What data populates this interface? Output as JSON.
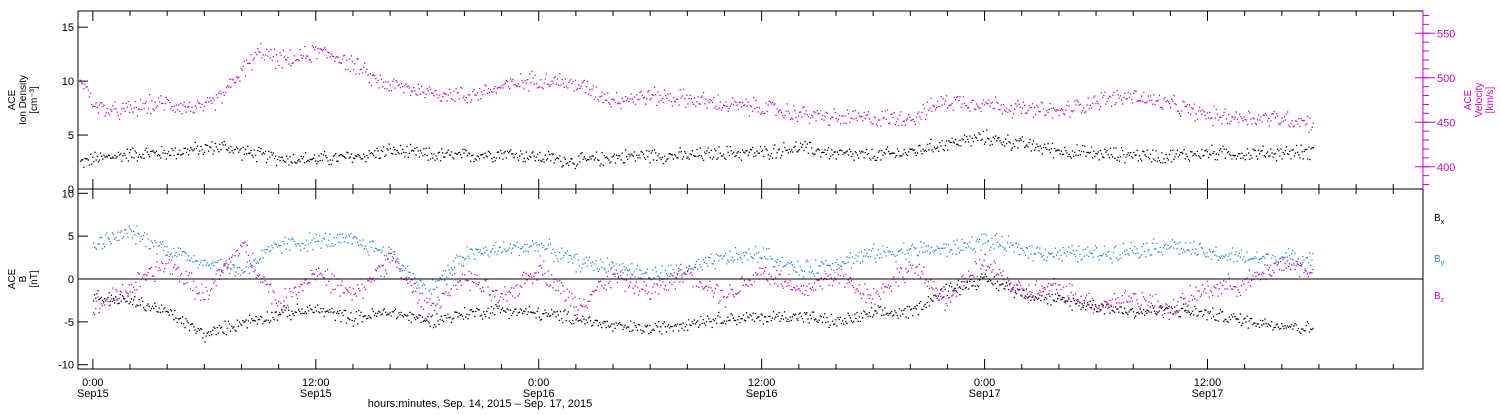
{
  "colors": {
    "axis": "#000000",
    "density": "#000000",
    "velocity": "#cc00cc",
    "bx": "#000000",
    "by": "#1e88e5",
    "bz": "#cc00cc"
  },
  "x_axis": {
    "title": "hours:minutes, Sep. 14, 2015 – Sep. 17, 2015",
    "ticks": [
      {
        "hours": 0,
        "time": "0:00",
        "date": "Sep15"
      },
      {
        "hours": 12,
        "time": "12:00",
        "date": "Sep15"
      },
      {
        "hours": 24,
        "time": "0:00",
        "date": "Sep16"
      },
      {
        "hours": 36,
        "time": "12:00",
        "date": "Sep16"
      },
      {
        "hours": 48,
        "time": "0:00",
        "date": "Sep17"
      },
      {
        "hours": 60,
        "time": "12:00",
        "date": "Sep17"
      }
    ]
  },
  "chart_data": [
    {
      "type": "scatter",
      "panel": "top",
      "xlabel": "hours:minutes, Sep. 14, 2015 – Sep. 17, 2015",
      "x_range_hours_from_sep15_0000": [
        -0.8,
        71.6
      ],
      "left_axis": {
        "label_lines": [
          "ACE",
          "Ion Density",
          "[cm⁻³]"
        ],
        "ylim": [
          0,
          16.5
        ],
        "ticks": [
          0,
          5,
          10,
          15
        ]
      },
      "right_axis": {
        "label_lines": [
          "ACE",
          "Velocity",
          "[km/s]"
        ],
        "ylim": [
          375,
          575
        ],
        "ticks": [
          400,
          450,
          500,
          550
        ]
      },
      "grid": false,
      "series": [
        {
          "axis": "left",
          "x": [
            -0.7,
            0,
            2,
            4,
            6,
            7,
            8,
            9,
            10,
            12,
            14,
            16,
            18,
            20,
            22,
            24,
            26,
            28,
            30,
            32,
            34,
            36,
            38,
            40,
            42,
            44,
            46,
            48,
            50,
            52,
            54,
            56,
            58,
            60,
            62,
            64,
            65.7
          ],
          "values": [
            2.5,
            2.8,
            3.3,
            3.4,
            3.8,
            4.0,
            3.5,
            3.2,
            2.9,
            2.8,
            3.0,
            3.6,
            3.2,
            3.1,
            3.4,
            3.0,
            2.6,
            3.0,
            3.2,
            3.1,
            3.4,
            3.4,
            3.9,
            3.3,
            3.1,
            3.5,
            4.3,
            4.8,
            4.2,
            3.6,
            3.3,
            3.2,
            3.1,
            3.4,
            3.3,
            3.4,
            3.5
          ]
        },
        {
          "axis": "right",
          "x": [
            -0.7,
            0,
            1,
            2,
            3,
            4,
            5,
            6,
            7,
            8,
            9,
            10,
            11,
            12,
            13,
            14,
            15,
            16,
            18,
            20,
            22,
            24,
            26,
            28,
            30,
            32,
            34,
            36,
            38,
            40,
            42,
            44,
            46,
            48,
            50,
            52,
            54,
            56,
            58,
            60,
            62,
            64,
            65.7
          ],
          "values": [
            505,
            470,
            462,
            465,
            470,
            472,
            468,
            466,
            482,
            508,
            530,
            520,
            522,
            530,
            526,
            515,
            500,
            492,
            485,
            480,
            490,
            500,
            493,
            476,
            480,
            477,
            470,
            467,
            460,
            455,
            455,
            456,
            475,
            472,
            465,
            462,
            475,
            480,
            470,
            458,
            456,
            455,
            450
          ]
        }
      ]
    },
    {
      "type": "scatter",
      "panel": "bottom",
      "xlabel": "hours:minutes, Sep. 14, 2015 – Sep. 17, 2015",
      "x_range_hours_from_sep15_0000": [
        -0.8,
        71.6
      ],
      "left_axis": {
        "label_lines": [
          "ACE",
          "B",
          "[nT]"
        ],
        "ylim": [
          -10.5,
          10.5
        ],
        "ticks": [
          -10,
          -5,
          0,
          5,
          10
        ]
      },
      "zero_line": true,
      "grid": false,
      "series": [
        {
          "name": "B",
          "subscript": "x",
          "x": [
            0,
            2,
            4,
            6,
            8,
            10,
            12,
            14,
            16,
            18,
            20,
            22,
            24,
            26,
            28,
            30,
            32,
            34,
            36,
            38,
            40,
            42,
            44,
            46,
            48,
            50,
            52,
            54,
            56,
            58,
            60,
            62,
            64,
            65.7
          ],
          "values": [
            -2.0,
            -2.5,
            -3.8,
            -6.5,
            -5.0,
            -4.0,
            -3.5,
            -4.5,
            -3.8,
            -4.8,
            -4.0,
            -3.5,
            -4.0,
            -4.5,
            -5.5,
            -5.8,
            -5.0,
            -4.5,
            -4.5,
            -4.2,
            -5.0,
            -4.0,
            -3.8,
            -1.0,
            0.0,
            -1.5,
            -2.5,
            -3.0,
            -3.8,
            -3.5,
            -4.0,
            -4.8,
            -5.3,
            -5.8
          ]
        },
        {
          "name": "B",
          "subscript": "y",
          "x": [
            0,
            2,
            4,
            6,
            8,
            10,
            12,
            14,
            16,
            18,
            20,
            22,
            24,
            26,
            28,
            30,
            32,
            34,
            36,
            38,
            40,
            42,
            44,
            46,
            48,
            50,
            52,
            54,
            56,
            58,
            60,
            62,
            64,
            65.7
          ],
          "values": [
            4.0,
            5.5,
            3.5,
            2.0,
            1.0,
            4.0,
            4.5,
            4.5,
            3.0,
            -1.5,
            3.0,
            3.5,
            4.0,
            2.0,
            1.5,
            0.5,
            1.0,
            2.5,
            3.0,
            1.0,
            2.0,
            3.0,
            3.5,
            3.5,
            4.5,
            3.5,
            3.0,
            3.0,
            3.5,
            4.0,
            3.0,
            2.5,
            2.5,
            2.5
          ]
        },
        {
          "name": "B",
          "subscript": "z",
          "x": [
            0,
            2,
            4,
            6,
            8,
            10,
            12,
            14,
            16,
            18,
            20,
            22,
            24,
            26,
            28,
            30,
            32,
            34,
            36,
            38,
            40,
            42,
            44,
            46,
            48,
            50,
            52,
            54,
            56,
            58,
            60,
            62,
            64,
            65.7
          ],
          "values": [
            -3.5,
            -1.0,
            2.0,
            -2.0,
            4.0,
            -3.0,
            1.0,
            -2.0,
            2.5,
            -3.5,
            0.5,
            -2.5,
            1.5,
            -3.0,
            0.5,
            -1.5,
            1.0,
            -2.0,
            1.0,
            -1.5,
            0.5,
            -2.0,
            1.5,
            -2.5,
            2.0,
            -1.5,
            -1.0,
            -3.0,
            -2.0,
            -3.5,
            -1.0,
            -0.5,
            2.0,
            1.0
          ]
        }
      ]
    }
  ]
}
